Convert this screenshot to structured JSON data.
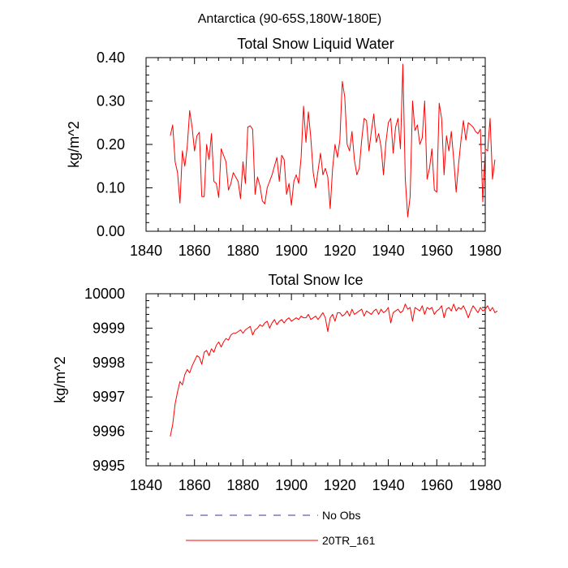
{
  "figure_title": "Antarctica (90-65S,180W-180E)",
  "colors": {
    "series": "#ff0000",
    "obs": "#3333aa",
    "axis": "#000000"
  },
  "legend": [
    {
      "label": "No Obs",
      "style": "dashed",
      "color": "#3333aa"
    },
    {
      "label": "20TR_161",
      "style": "solid",
      "color": "#ff0000"
    }
  ],
  "chart_data": [
    {
      "type": "line",
      "title": "Total Snow Liquid Water",
      "xlabel": "",
      "ylabel": "kg/m^2",
      "xlim": [
        1840,
        1980
      ],
      "ylim": [
        0.0,
        0.4
      ],
      "xticks": [
        1840,
        1860,
        1880,
        1900,
        1920,
        1940,
        1960,
        1980
      ],
      "xtick_labels": [
        "1840",
        "1860",
        "1880",
        "1900",
        "1920",
        "1940",
        "1960",
        "1980"
      ],
      "yticks": [
        0.0,
        0.1,
        0.2,
        0.3,
        0.4
      ],
      "ytick_labels": [
        "0.00",
        "0.10",
        "0.20",
        "0.30",
        "0.40"
      ],
      "series": [
        {
          "name": "20TR_161",
          "x_start": 1850,
          "x_step": 1,
          "values": [
            0.22,
            0.245,
            0.16,
            0.135,
            0.065,
            0.185,
            0.15,
            0.195,
            0.278,
            0.24,
            0.185,
            0.22,
            0.228,
            0.08,
            0.08,
            0.2,
            0.165,
            0.225,
            0.115,
            0.11,
            0.078,
            0.19,
            0.175,
            0.16,
            0.095,
            0.11,
            0.135,
            0.125,
            0.115,
            0.075,
            0.16,
            0.11,
            0.24,
            0.243,
            0.235,
            0.085,
            0.125,
            0.105,
            0.07,
            0.063,
            0.1,
            0.115,
            0.13,
            0.15,
            0.17,
            0.115,
            0.175,
            0.165,
            0.085,
            0.11,
            0.06,
            0.115,
            0.13,
            0.11,
            0.17,
            0.288,
            0.205,
            0.275,
            0.215,
            0.135,
            0.1,
            0.14,
            0.18,
            0.13,
            0.145,
            0.125,
            0.052,
            0.145,
            0.2,
            0.17,
            0.21,
            0.345,
            0.31,
            0.2,
            0.185,
            0.23,
            0.165,
            0.13,
            0.145,
            0.21,
            0.26,
            0.255,
            0.185,
            0.23,
            0.27,
            0.205,
            0.225,
            0.195,
            0.13,
            0.205,
            0.25,
            0.26,
            0.18,
            0.24,
            0.26,
            0.19,
            0.385,
            0.12,
            0.033,
            0.08,
            0.3,
            0.232,
            0.245,
            0.2,
            0.215,
            0.3,
            0.12,
            0.145,
            0.19,
            0.095,
            0.09,
            0.295,
            0.26,
            0.13,
            0.22,
            0.185,
            0.23,
            0.165,
            0.09,
            0.155,
            0.21,
            0.255,
            0.21,
            0.25,
            0.245,
            0.24,
            0.23,
            0.225,
            0.235,
            0.068,
            0.19,
            0.185,
            0.26,
            0.12,
            0.165
          ]
        }
      ]
    },
    {
      "type": "line",
      "title": "Total Snow Ice",
      "xlabel": "",
      "ylabel": "kg/m^2",
      "xlim": [
        1840,
        1980
      ],
      "ylim": [
        9995,
        10000
      ],
      "xticks": [
        1840,
        1860,
        1880,
        1900,
        1920,
        1940,
        1960,
        1980
      ],
      "xtick_labels": [
        "1840",
        "1860",
        "1880",
        "1900",
        "1920",
        "1940",
        "1960",
        "1980"
      ],
      "yticks": [
        9995,
        9996,
        9997,
        9998,
        9999,
        10000
      ],
      "ytick_labels": [
        "9995",
        "9996",
        "9997",
        "9998",
        "9999",
        "10000"
      ],
      "series": [
        {
          "name": "20TR_161",
          "x_start": 1850,
          "x_step": 1,
          "values": [
            9995.85,
            9996.2,
            9996.8,
            9997.15,
            9997.45,
            9997.35,
            9997.65,
            9997.8,
            9997.7,
            9997.9,
            9998.05,
            9998.2,
            9998.15,
            9997.95,
            9998.3,
            9998.35,
            9998.2,
            9998.4,
            9998.3,
            9998.5,
            9998.6,
            9998.45,
            9998.6,
            9998.7,
            9998.65,
            9998.8,
            9998.85,
            9998.85,
            9998.9,
            9998.95,
            9998.85,
            9998.95,
            9999.0,
            9999.05,
            9998.8,
            9998.95,
            9999.0,
            9999.1,
            9999.05,
            9999.15,
            9999.2,
            9999.0,
            9999.15,
            9999.25,
            9999.1,
            9999.2,
            9999.25,
            9999.15,
            9999.25,
            9999.3,
            9999.2,
            9999.25,
            9999.3,
            9999.25,
            9999.35,
            9999.3,
            9999.3,
            9999.4,
            9999.25,
            9999.3,
            9999.35,
            9999.25,
            9999.35,
            9999.45,
            9999.3,
            9998.9,
            9999.3,
            9999.4,
            9999.2,
            9999.45,
            9999.45,
            9999.35,
            9999.4,
            9999.5,
            9999.35,
            9999.55,
            9999.4,
            9999.45,
            9999.5,
            9999.55,
            9999.35,
            9999.5,
            9999.45,
            9999.4,
            9999.5,
            9999.55,
            9999.4,
            9999.55,
            9999.45,
            9999.5,
            9999.6,
            9999.15,
            9999.45,
            9999.5,
            9999.55,
            9999.45,
            9999.5,
            9999.7,
            9999.55,
            9999.6,
            9999.2,
            9999.6,
            9999.55,
            9999.5,
            9999.65,
            9999.4,
            9999.6,
            9999.55,
            9999.6,
            9999.4,
            9999.5,
            9999.55,
            9999.65,
            9999.3,
            9999.55,
            9999.6,
            9999.5,
            9999.7,
            9999.5,
            9999.6,
            9999.55,
            9999.65,
            9999.5,
            9999.3,
            9999.5,
            9999.65,
            9999.55,
            9999.45,
            9999.6,
            9999.5,
            9999.55,
            9999.65,
            9999.5,
            9999.6,
            9999.45,
            9999.5
          ]
        }
      ]
    }
  ]
}
